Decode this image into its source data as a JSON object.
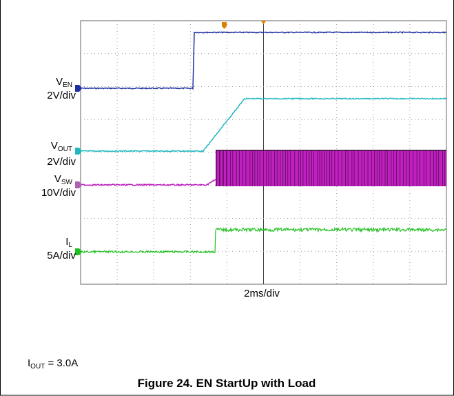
{
  "channels": [
    {
      "symbol": "V",
      "sub": "EN",
      "scale": "2V/div"
    },
    {
      "symbol": "V",
      "sub": "OUT",
      "scale": "2V/div"
    },
    {
      "symbol": "V",
      "sub": "SW",
      "scale": "10V/div"
    },
    {
      "symbol": "I",
      "sub": "L",
      "scale": "5A/div"
    }
  ],
  "timebase": "2ms/div",
  "note": {
    "symbol": "I",
    "sub": "OUT",
    "rest": " = 3.0A"
  },
  "caption": "Figure 24. EN StartUp with Load"
}
